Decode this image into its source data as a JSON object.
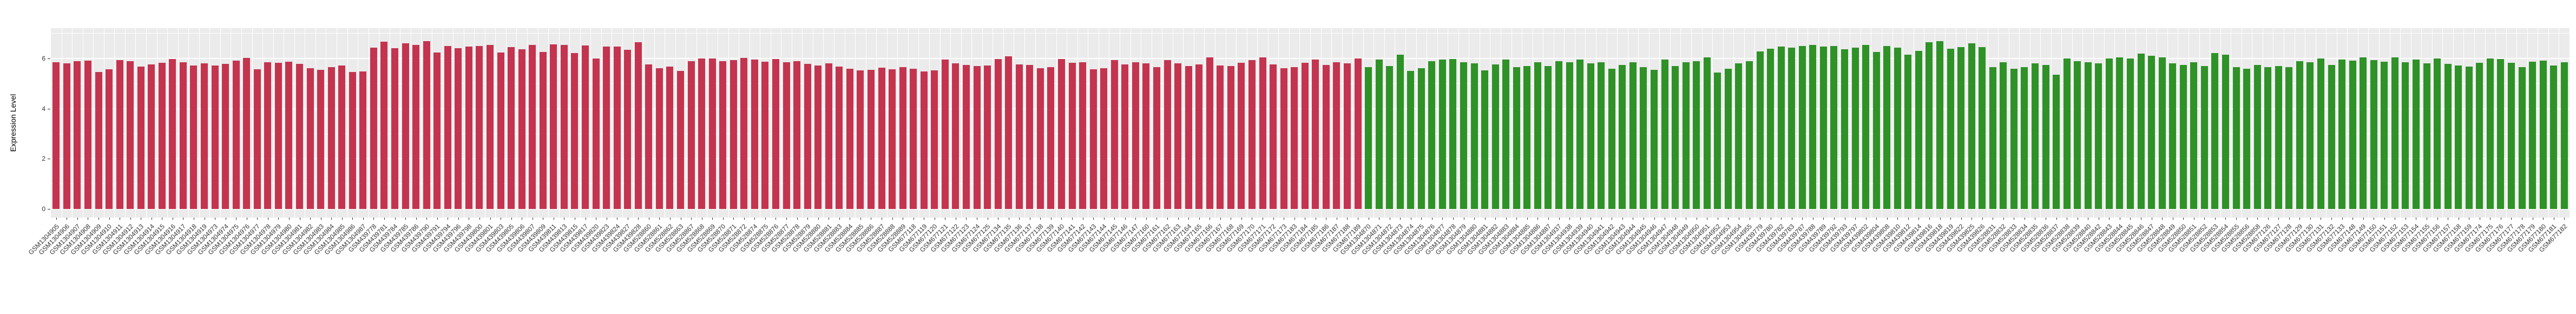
{
  "figure": {
    "background": "#FFFFFF",
    "panel_background": "#EBEBEB",
    "gridline_color": "#FFFFFF",
    "axis_text_color": "#333333"
  },
  "chart_data": {
    "type": "bar",
    "title": "",
    "xlabel": "",
    "ylabel": "Expression Level",
    "yticks": [
      0,
      2,
      4,
      6
    ],
    "yminor": [
      1,
      3,
      5,
      7
    ],
    "ylim": [
      0,
      7.2
    ],
    "grid": "on",
    "legend": "none",
    "x_tick_rotation": 45,
    "red_color": "#C4344F",
    "green_color": "#2E9227",
    "red_count": 124,
    "n_bars": 238,
    "categories": [
      "GSM1304905",
      "GSM1304906",
      "GSM1304907",
      "GSM1304908",
      "GSM1304909",
      "GSM1304910",
      "GSM1304911",
      "GSM1304912",
      "GSM1304913",
      "GSM1304914",
      "GSM1304915",
      "GSM1304916",
      "GSM1304917",
      "GSM1304918",
      "GSM1304919",
      "GSM1304973",
      "GSM1304974",
      "GSM1304975",
      "GSM1304976",
      "GSM1304977",
      "GSM1304978",
      "GSM1304979",
      "GSM1304980",
      "GSM1304981",
      "GSM1304982",
      "GSM1304983",
      "GSM1304984",
      "GSM1304985",
      "GSM1304986",
      "GSM1304987",
      "GSM439778",
      "GSM439781",
      "GSM439784",
      "GSM439785",
      "GSM439786",
      "GSM439790",
      "GSM439791",
      "GSM439794",
      "GSM439796",
      "GSM439798",
      "GSM439800",
      "GSM439801",
      "GSM439803",
      "GSM439805",
      "GSM439806",
      "GSM439807",
      "GSM439809",
      "GSM439811",
      "GSM439813",
      "GSM439815",
      "GSM439817",
      "GSM439820",
      "GSM439823",
      "GSM439824",
      "GSM439827",
      "GSM439828",
      "GSM528860",
      "GSM528861",
      "GSM528862",
      "GSM528863",
      "GSM528867",
      "GSM528868",
      "GSM528869",
      "GSM528870",
      "GSM528871",
      "GSM528872",
      "GSM528874",
      "GSM528875",
      "GSM528876",
      "GSM528877",
      "GSM528878",
      "GSM528879",
      "GSM528880",
      "GSM528881",
      "GSM528883",
      "GSM528884",
      "GSM528885",
      "GSM528886",
      "GSM528887",
      "GSM528888",
      "GSM528889",
      "GSM677118",
      "GSM677119",
      "GSM677120",
      "GSM677121",
      "GSM677122",
      "GSM677123",
      "GSM677124",
      "GSM677125",
      "GSM677134",
      "GSM677135",
      "GSM677136",
      "GSM677137",
      "GSM677138",
      "GSM677139",
      "GSM677140",
      "GSM677141",
      "GSM677142",
      "GSM677143",
      "GSM677144",
      "GSM677145",
      "GSM677146",
      "GSM677147",
      "GSM677160",
      "GSM677161",
      "GSM677162",
      "GSM677163",
      "GSM677164",
      "GSM677165",
      "GSM677166",
      "GSM677167",
      "GSM677168",
      "GSM677169",
      "GSM677170",
      "GSM677171",
      "GSM677172",
      "GSM677173",
      "GSM677183",
      "GSM677184",
      "GSM677185",
      "GSM677186",
      "GSM677187",
      "GSM677188",
      "GSM677189",
      "GSM1304870",
      "GSM1304871",
      "GSM1304872",
      "GSM1304873",
      "GSM1304874",
      "GSM1304875",
      "GSM1304876",
      "GSM1304877",
      "GSM1304878",
      "GSM1304879",
      "GSM1304880",
      "GSM1304881",
      "GSM1304882",
      "GSM1304883",
      "GSM1304884",
      "GSM1304885",
      "GSM1304886",
      "GSM1304887",
      "GSM1304937",
      "GSM1304938",
      "GSM1304939",
      "GSM1304940",
      "GSM1304941",
      "GSM1304942",
      "GSM1304943",
      "GSM1304944",
      "GSM1304945",
      "GSM1304946",
      "GSM1304947",
      "GSM1304948",
      "GSM1304949",
      "GSM1304950",
      "GSM1304951",
      "GSM1304952",
      "GSM1304953",
      "GSM1304954",
      "GSM1304955",
      "GSM439779",
      "GSM439780",
      "GSM439782",
      "GSM439783",
      "GSM439787",
      "GSM439788",
      "GSM439789",
      "GSM439792",
      "GSM439793",
      "GSM439797",
      "GSM439802",
      "GSM439804",
      "GSM439808",
      "GSM439810",
      "GSM439812",
      "GSM439814",
      "GSM439816",
      "GSM439818",
      "GSM439819",
      "GSM439822",
      "GSM439825",
      "GSM439826",
      "GSM528831",
      "GSM528832",
      "GSM528833",
      "GSM528834",
      "GSM528835",
      "GSM528836",
      "GSM528837",
      "GSM528838",
      "GSM528839",
      "GSM528840",
      "GSM528842",
      "GSM528843",
      "GSM528844",
      "GSM528845",
      "GSM528846",
      "GSM528847",
      "GSM528848",
      "GSM528849",
      "GSM528850",
      "GSM528851",
      "GSM528852",
      "GSM528853",
      "GSM528854",
      "GSM528855",
      "GSM528856",
      "GSM528858",
      "GSM677126",
      "GSM677127",
      "GSM677128",
      "GSM677129",
      "GSM677130",
      "GSM677131",
      "GSM677132",
      "GSM677133",
      "GSM677148",
      "GSM677149",
      "GSM677150",
      "GSM677151",
      "GSM677152",
      "GSM677153",
      "GSM677154",
      "GSM677155",
      "GSM677156",
      "GSM677157",
      "GSM677158",
      "GSM677159",
      "GSM677174",
      "GSM677175",
      "GSM677176",
      "GSM677177",
      "GSM677178",
      "GSM677179",
      "GSM677180",
      "GSM677181",
      "GSM677182"
    ],
    "values": [
      5.84,
      5.8,
      5.89,
      5.92,
      5.46,
      5.57,
      5.94,
      5.9,
      5.67,
      5.76,
      5.83,
      5.98,
      5.86,
      5.71,
      5.81,
      5.71,
      5.79,
      5.92,
      6.03,
      5.58,
      5.86,
      5.83,
      5.88,
      5.78,
      5.62,
      5.55,
      5.66,
      5.72,
      5.46,
      5.48,
      6.43,
      6.66,
      6.41,
      6.6,
      6.55,
      6.7,
      6.23,
      6.5,
      6.41,
      6.48,
      6.49,
      6.55,
      6.24,
      6.46,
      6.37,
      6.53,
      6.26,
      6.57,
      6.55,
      6.21,
      6.51,
      6.01,
      6.48,
      6.48,
      6.34,
      6.64,
      5.76,
      5.62,
      5.67,
      5.51,
      5.89,
      6.01,
      6.0,
      5.89,
      5.93,
      6.03,
      5.95,
      5.88,
      5.97,
      5.85,
      5.9,
      5.78,
      5.72,
      5.8,
      5.68,
      5.6,
      5.52,
      5.55,
      5.63,
      5.58,
      5.65,
      5.6,
      5.48,
      5.52,
      5.95,
      5.8,
      5.75,
      5.7,
      5.72,
      5.98,
      6.08,
      5.76,
      5.74,
      5.62,
      5.66,
      5.98,
      5.82,
      5.86,
      5.56,
      5.62,
      5.94,
      5.76,
      5.84,
      5.8,
      5.66,
      5.94,
      5.8,
      5.7,
      5.76,
      6.04,
      5.72,
      5.7,
      5.82,
      5.94,
      6.04,
      5.76,
      5.62,
      5.66,
      5.82,
      5.95,
      5.75,
      5.85,
      5.8,
      6.0,
      5.65,
      5.95,
      5.7,
      6.15,
      5.5,
      5.62,
      5.9,
      5.95,
      5.97,
      5.85,
      5.8,
      5.52,
      5.76,
      5.95,
      5.65,
      5.7,
      5.85,
      5.7,
      5.9,
      5.85,
      5.95,
      5.8,
      5.85,
      5.6,
      5.75,
      5.85,
      5.65,
      5.55,
      5.95,
      5.7,
      5.85,
      5.9,
      6.05,
      5.45,
      5.6,
      5.8,
      5.9,
      6.28,
      6.38,
      6.48,
      6.44,
      6.5,
      6.54,
      6.48,
      6.5,
      6.36,
      6.44,
      6.54,
      6.26,
      6.5,
      6.44,
      6.16,
      6.3,
      6.64,
      6.7,
      6.4,
      6.46,
      6.6,
      6.46,
      5.65,
      5.85,
      5.6,
      5.65,
      5.8,
      5.75,
      5.35,
      6.0,
      5.9,
      5.85,
      5.8,
      6.0,
      6.05,
      6.0,
      6.2,
      6.1,
      6.05,
      5.8,
      5.75,
      5.85,
      5.7,
      6.22,
      6.15,
      5.65,
      5.6,
      5.75,
      5.65,
      5.7,
      5.65,
      5.9,
      5.85,
      6.0,
      5.75,
      5.95,
      5.92,
      6.05,
      5.93,
      5.88,
      6.05,
      5.85,
      5.95,
      5.8,
      6.0,
      5.78,
      5.72,
      5.68,
      5.82,
      6.0,
      5.97,
      5.82,
      5.65,
      5.88,
      5.92,
      5.72,
      5.85
    ]
  }
}
